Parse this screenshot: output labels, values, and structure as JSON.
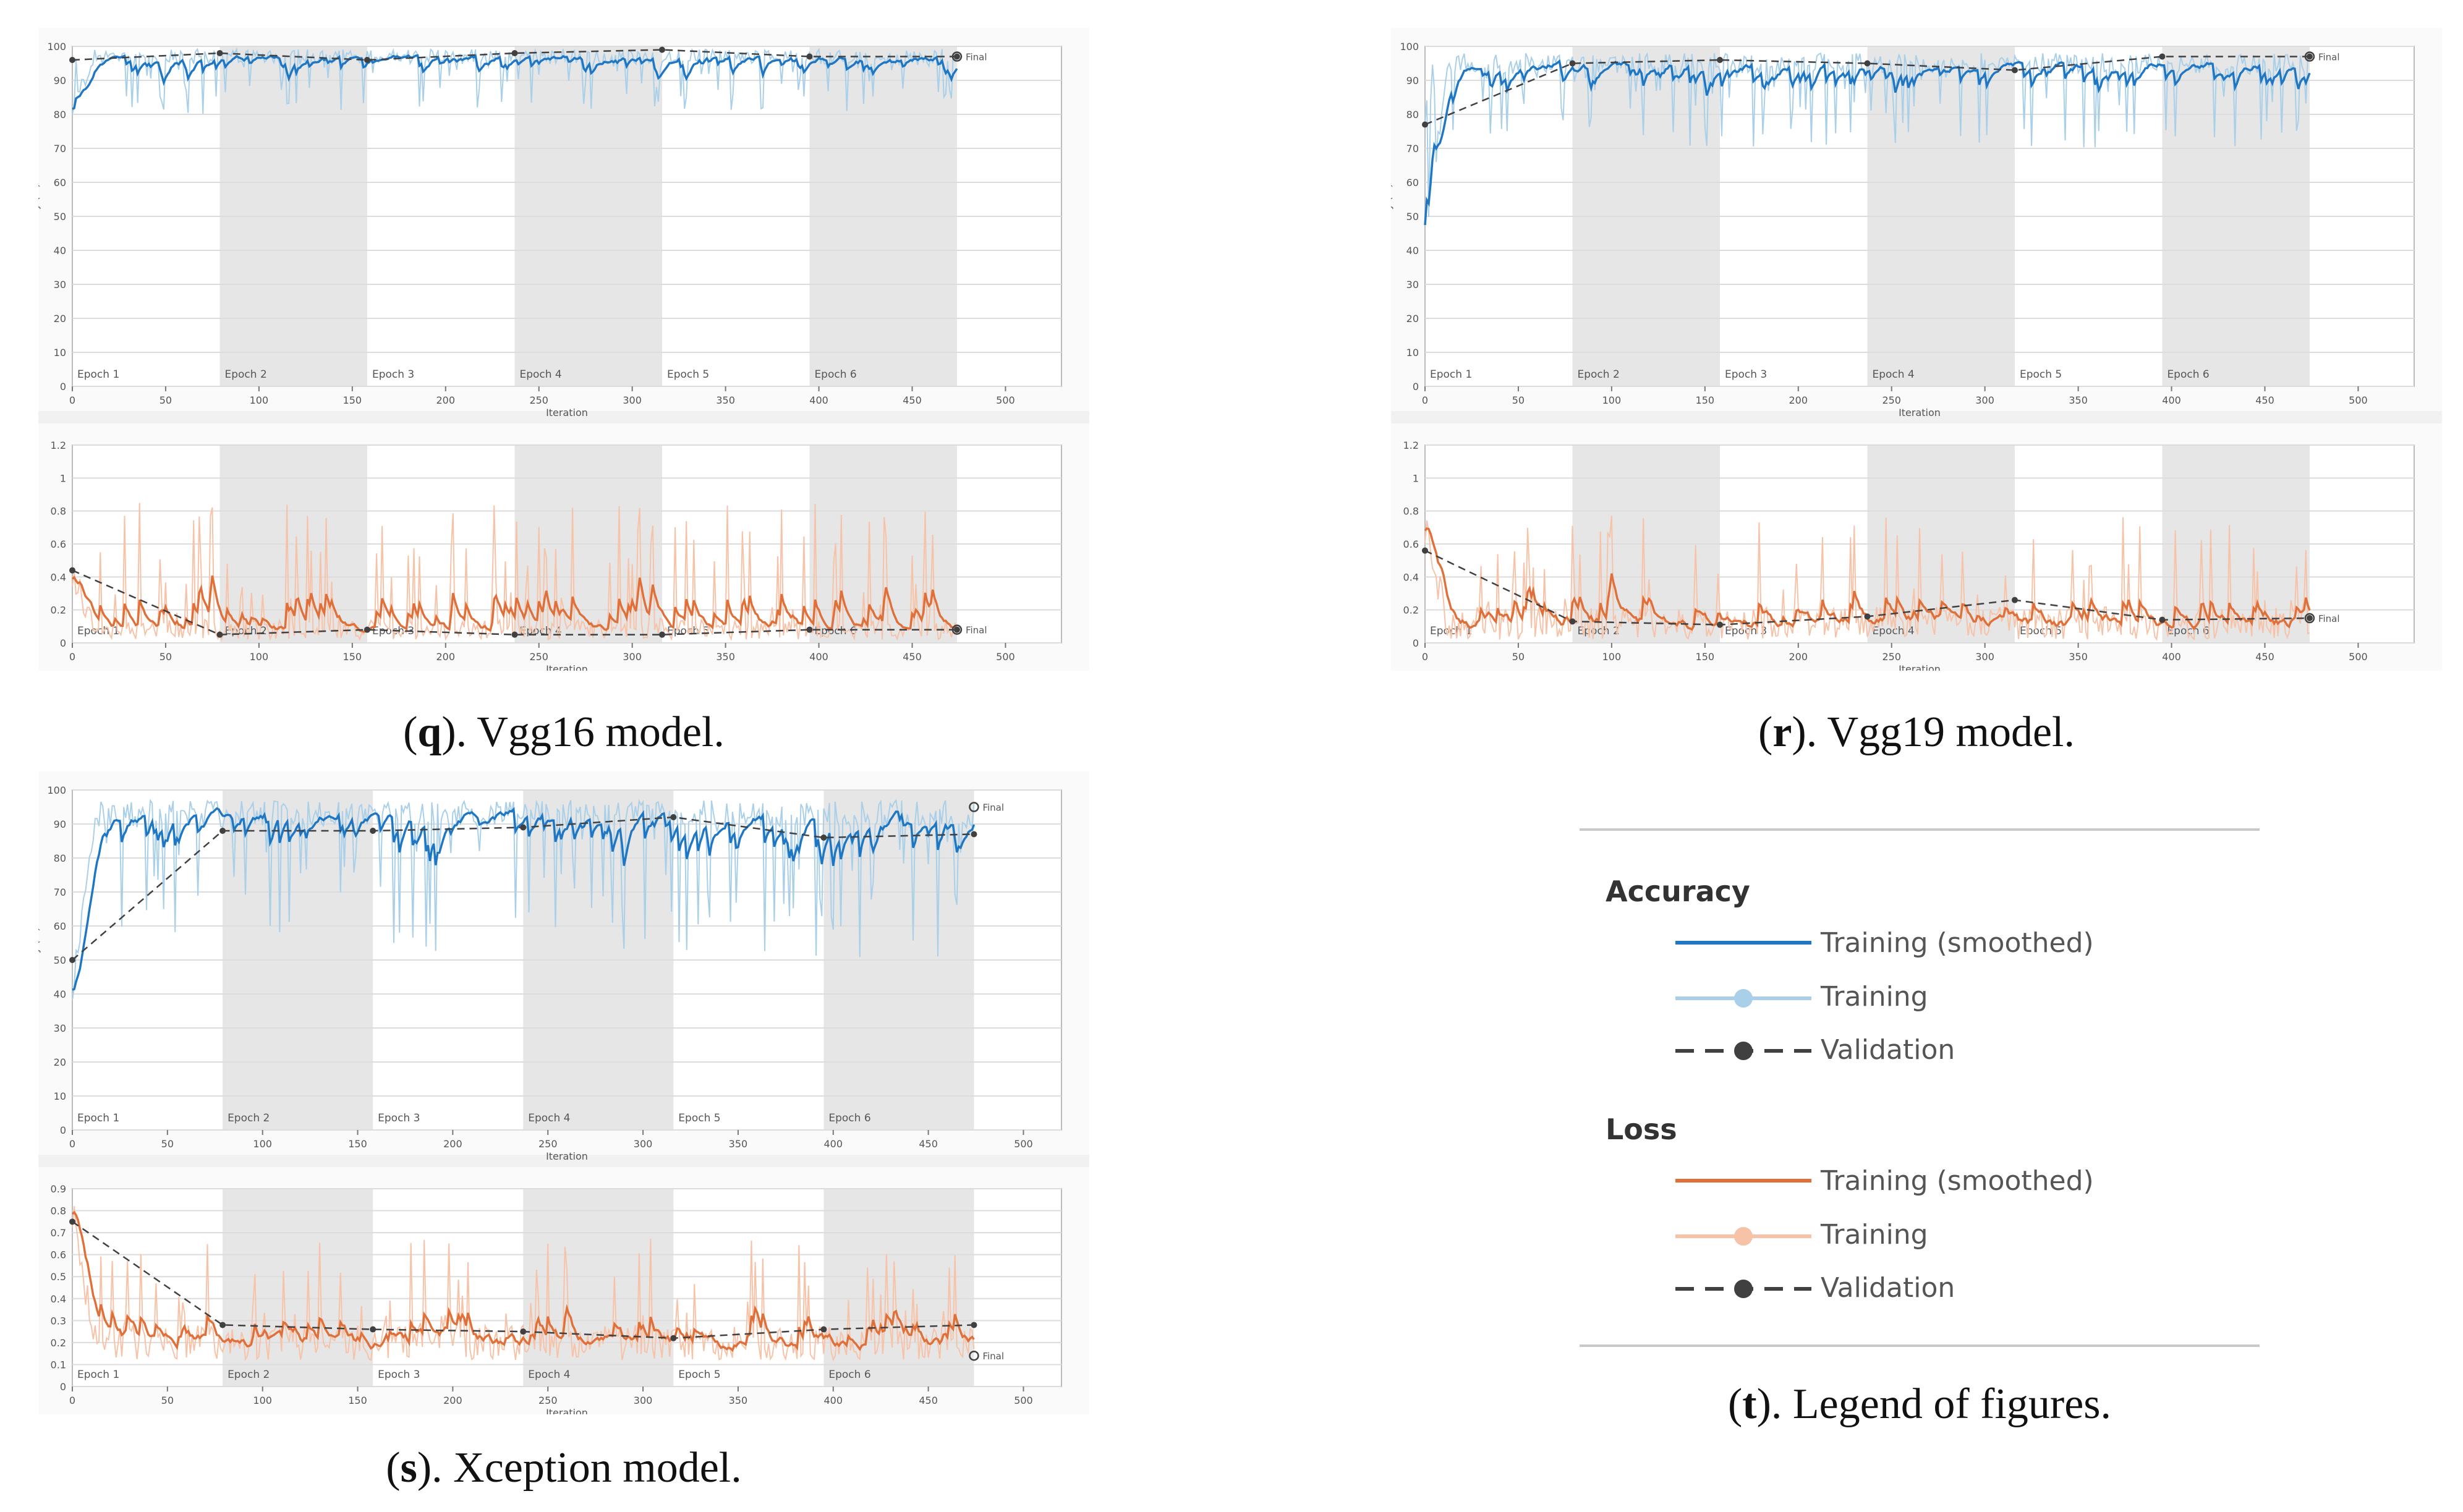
{
  "panels": [
    {
      "id": "q",
      "caption_letter": "q",
      "caption_text": "). Vgg16 model.",
      "accuracy": {
        "ylabel": "Accuracy (%)",
        "xlabel": "Iteration",
        "ylim": [
          0,
          100
        ],
        "yticks": [
          0,
          10,
          20,
          30,
          40,
          50,
          60,
          70,
          80,
          90,
          100
        ],
        "xlim": [
          0,
          530
        ],
        "xticks": [
          0,
          50,
          100,
          150,
          200,
          250,
          300,
          350,
          400,
          450,
          500
        ],
        "train_base": 97,
        "train_amp": 2.2,
        "train_start": 82,
        "validation": [
          [
            0,
            96
          ],
          [
            79,
            98
          ],
          [
            158,
            96
          ],
          [
            237,
            98
          ],
          [
            316,
            99
          ],
          [
            395,
            97
          ],
          [
            474,
            97
          ]
        ],
        "final_value": 97,
        "final_label": "Final",
        "spikes_low": 80
      },
      "loss": {
        "ylabel": "Loss",
        "xlabel": "Iteration",
        "ylim": [
          0,
          1.2
        ],
        "yticks": [
          0,
          0.2,
          0.4,
          0.6,
          0.8,
          1,
          1.2
        ],
        "xlim": [
          0,
          530
        ],
        "xticks": [
          0,
          50,
          100,
          150,
          200,
          250,
          300,
          350,
          400,
          450,
          500
        ],
        "train_base": 0.08,
        "train_amp": 0.06,
        "train_start": 0.4,
        "validation": [
          [
            0,
            0.44
          ],
          [
            79,
            0.05
          ],
          [
            158,
            0.08
          ],
          [
            237,
            0.05
          ],
          [
            316,
            0.05
          ],
          [
            395,
            0.08
          ],
          [
            474,
            0.08
          ]
        ],
        "final_value": 0.08,
        "final_label": "Final",
        "spikes_high": 1.18
      },
      "epochs": [
        "Epoch 1",
        "Epoch 2",
        "Epoch 3",
        "Epoch 4",
        "Epoch 5",
        "Epoch 6"
      ],
      "epoch_ends": [
        79,
        158,
        237,
        316,
        395,
        474
      ]
    },
    {
      "id": "r",
      "caption_letter": "r",
      "caption_text": "). Vgg19 model.",
      "accuracy": {
        "ylabel": "Accuracy (%)",
        "xlabel": "Iteration",
        "ylim": [
          0,
          100
        ],
        "yticks": [
          0,
          10,
          20,
          30,
          40,
          50,
          60,
          70,
          80,
          90,
          100
        ],
        "xlim": [
          0,
          530
        ],
        "xticks": [
          0,
          50,
          100,
          150,
          200,
          250,
          300,
          350,
          400,
          450,
          500
        ],
        "train_base": 95,
        "train_amp": 3,
        "train_start": 40,
        "validation": [
          [
            0,
            77
          ],
          [
            79,
            95
          ],
          [
            158,
            96
          ],
          [
            237,
            95
          ],
          [
            316,
            93
          ],
          [
            395,
            97
          ],
          [
            474,
            97
          ]
        ],
        "final_value": 97,
        "final_label": "Final",
        "spikes_low": 70
      },
      "loss": {
        "ylabel": "Loss",
        "xlabel": "Iteration",
        "ylim": [
          0,
          1.2
        ],
        "yticks": [
          0,
          0.2,
          0.4,
          0.6,
          0.8,
          1,
          1.2
        ],
        "xlim": [
          0,
          530
        ],
        "xticks": [
          0,
          50,
          100,
          150,
          200,
          250,
          300,
          350,
          400,
          450,
          500
        ],
        "train_base": 0.12,
        "train_amp": 0.1,
        "train_start": 0.7,
        "validation": [
          [
            0,
            0.56
          ],
          [
            79,
            0.13
          ],
          [
            158,
            0.11
          ],
          [
            237,
            0.16
          ],
          [
            316,
            0.26
          ],
          [
            395,
            0.14
          ],
          [
            474,
            0.15
          ]
        ],
        "final_value": 0.15,
        "final_label": "Final",
        "spikes_high": 1.05
      },
      "epochs": [
        "Epoch 1",
        "Epoch 2",
        "Epoch 3",
        "Epoch 4",
        "Epoch 5",
        "Epoch 6"
      ],
      "epoch_ends": [
        79,
        158,
        237,
        316,
        395,
        474
      ]
    },
    {
      "id": "s",
      "caption_letter": "s",
      "caption_text": "). Xception model.",
      "accuracy": {
        "ylabel": "Accuracy (%)",
        "xlabel": "Iteration",
        "ylim": [
          0,
          100
        ],
        "yticks": [
          0,
          10,
          20,
          30,
          40,
          50,
          60,
          70,
          80,
          90,
          100
        ],
        "xlim": [
          0,
          520
        ],
        "xticks": [
          0,
          50,
          100,
          150,
          200,
          250,
          300,
          350,
          400,
          450,
          500
        ],
        "train_base": 93,
        "train_amp": 4,
        "train_start": 42,
        "validation": [
          [
            0,
            50
          ],
          [
            79,
            88
          ],
          [
            158,
            88
          ],
          [
            237,
            89
          ],
          [
            316,
            92
          ],
          [
            395,
            86
          ],
          [
            474,
            87
          ]
        ],
        "final_value": 95,
        "final_label": "Final",
        "spikes_low": 50
      },
      "loss": {
        "ylabel": "Loss",
        "xlabel": "Iteration",
        "ylim": [
          0,
          0.9
        ],
        "yticks": [
          0,
          0.1,
          0.2,
          0.3,
          0.4,
          0.5,
          0.6,
          0.7,
          0.8,
          0.9
        ],
        "xlim": [
          0,
          520
        ],
        "xticks": [
          0,
          50,
          100,
          150,
          200,
          250,
          300,
          350,
          400,
          450,
          500
        ],
        "train_base": 0.2,
        "train_amp": 0.08,
        "train_start": 0.8,
        "validation": [
          [
            0,
            0.75
          ],
          [
            79,
            0.28
          ],
          [
            158,
            0.26
          ],
          [
            237,
            0.25
          ],
          [
            316,
            0.22
          ],
          [
            395,
            0.26
          ],
          [
            474,
            0.28
          ]
        ],
        "final_value": 0.14,
        "final_label": "Final",
        "spikes_high": 0.88
      },
      "epochs": [
        "Epoch 1",
        "Epoch 2",
        "Epoch 3",
        "Epoch 4",
        "Epoch 5",
        "Epoch 6"
      ],
      "epoch_ends": [
        79,
        158,
        237,
        316,
        395,
        474
      ]
    }
  ],
  "legend": {
    "caption_letter": "t",
    "caption_text": "). Legend of figures.",
    "accuracy_title": "Accuracy",
    "loss_title": "Loss",
    "training_smoothed": "Training (smoothed)",
    "training": "Training",
    "validation": "Validation"
  },
  "colors": {
    "acc_smooth": "#1f77c4",
    "acc_raw": "#a9cfe9",
    "loss_smooth": "#e0703a",
    "loss_raw": "#f6c3a9",
    "validation": "#404040",
    "shade": "#e6e6e6",
    "grid": "#dcdcdc"
  },
  "chart_data": [
    {
      "type": "line",
      "title": "(q). Vgg16 model.",
      "xlabel": "Iteration",
      "ylabel": "Accuracy (%)",
      "ylim": [
        0,
        100
      ],
      "series": [
        {
          "name": "Validation",
          "x": [
            0,
            79,
            158,
            237,
            316,
            395,
            474
          ],
          "values": [
            96,
            98,
            96,
            98,
            99,
            97,
            97
          ]
        }
      ]
    },
    {
      "type": "line",
      "title": "(q). Vgg16 model.",
      "xlabel": "Iteration",
      "ylabel": "Loss",
      "ylim": [
        0,
        1.2
      ],
      "series": [
        {
          "name": "Validation",
          "x": [
            0,
            79,
            158,
            237,
            316,
            395,
            474
          ],
          "values": [
            0.44,
            0.05,
            0.08,
            0.05,
            0.05,
            0.08,
            0.08
          ]
        }
      ]
    },
    {
      "type": "line",
      "title": "(r). Vgg19 model.",
      "xlabel": "Iteration",
      "ylabel": "Accuracy (%)",
      "ylim": [
        0,
        100
      ],
      "series": [
        {
          "name": "Validation",
          "x": [
            0,
            79,
            158,
            237,
            316,
            395,
            474
          ],
          "values": [
            77,
            95,
            96,
            95,
            93,
            97,
            97
          ]
        }
      ]
    },
    {
      "type": "line",
      "title": "(r). Vgg19 model.",
      "xlabel": "Iteration",
      "ylabel": "Loss",
      "ylim": [
        0,
        1.2
      ],
      "series": [
        {
          "name": "Validation",
          "x": [
            0,
            79,
            158,
            237,
            316,
            395,
            474
          ],
          "values": [
            0.56,
            0.13,
            0.11,
            0.16,
            0.26,
            0.14,
            0.15
          ]
        }
      ]
    },
    {
      "type": "line",
      "title": "(s). Xception model.",
      "xlabel": "Iteration",
      "ylabel": "Accuracy (%)",
      "ylim": [
        0,
        100
      ],
      "series": [
        {
          "name": "Validation",
          "x": [
            0,
            79,
            158,
            237,
            316,
            395,
            474
          ],
          "values": [
            50,
            88,
            88,
            89,
            92,
            86,
            87
          ]
        }
      ]
    },
    {
      "type": "line",
      "title": "(s). Xception model.",
      "xlabel": "Iteration",
      "ylabel": "Loss",
      "ylim": [
        0,
        0.9
      ],
      "series": [
        {
          "name": "Validation",
          "x": [
            0,
            79,
            158,
            237,
            316,
            395,
            474
          ],
          "values": [
            0.75,
            0.28,
            0.26,
            0.25,
            0.22,
            0.26,
            0.28
          ]
        }
      ]
    }
  ]
}
